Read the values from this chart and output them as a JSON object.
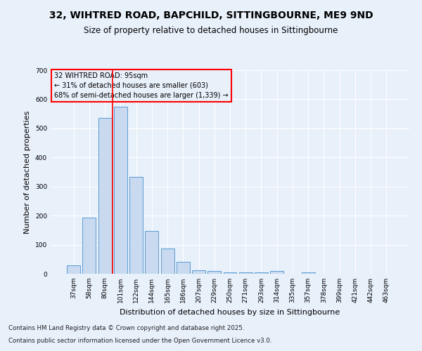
{
  "title": "32, WIHTRED ROAD, BAPCHILD, SITTINGBOURNE, ME9 9ND",
  "subtitle": "Size of property relative to detached houses in Sittingbourne",
  "xlabel": "Distribution of detached houses by size in Sittingbourne",
  "ylabel": "Number of detached properties",
  "categories": [
    "37sqm",
    "58sqm",
    "80sqm",
    "101sqm",
    "122sqm",
    "144sqm",
    "165sqm",
    "186sqm",
    "207sqm",
    "229sqm",
    "250sqm",
    "271sqm",
    "293sqm",
    "314sqm",
    "335sqm",
    "357sqm",
    "378sqm",
    "399sqm",
    "421sqm",
    "442sqm",
    "463sqm"
  ],
  "values": [
    30,
    192,
    535,
    575,
    333,
    148,
    86,
    40,
    13,
    10,
    5,
    5,
    5,
    10,
    0,
    5,
    0,
    0,
    0,
    0,
    0
  ],
  "bar_color": "#c8d9f0",
  "bar_edge_color": "#5b9bd5",
  "annotation_title": "32 WIHTRED ROAD: 95sqm",
  "annotation_line1": "← 31% of detached houses are smaller (603)",
  "annotation_line2": "68% of semi-detached houses are larger (1,339) →",
  "vline_x_index": 2.5,
  "ylim": [
    0,
    700
  ],
  "yticks": [
    0,
    100,
    200,
    300,
    400,
    500,
    600,
    700
  ],
  "background_color": "#e8f0fa",
  "grid_color": "#ffffff",
  "footer_line1": "Contains HM Land Registry data © Crown copyright and database right 2025.",
  "footer_line2": "Contains public sector information licensed under the Open Government Licence v3.0."
}
